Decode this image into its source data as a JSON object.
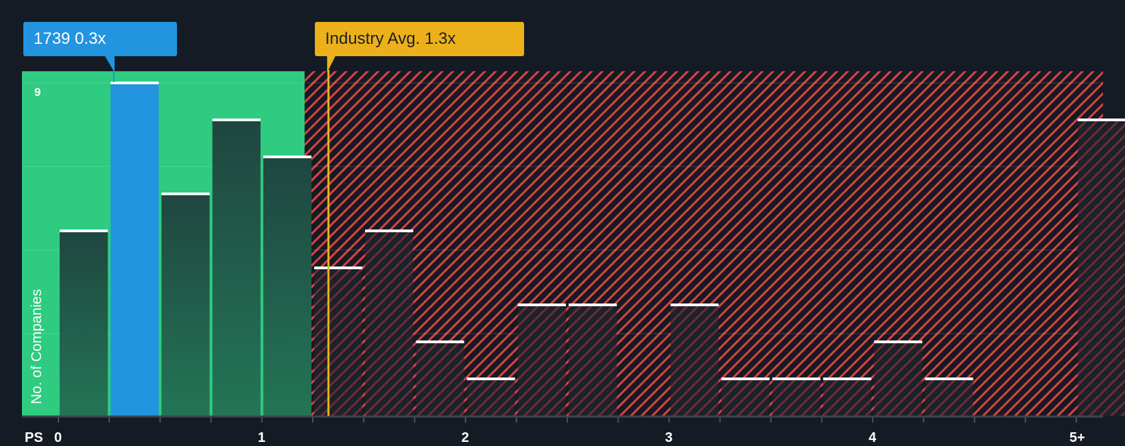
{
  "chart_data": {
    "type": "bar",
    "title": "",
    "xlabel": "PS",
    "ylabel": "No. of Companies",
    "x_tick_labels": [
      "0",
      "1",
      "2",
      "3",
      "4",
      "5+"
    ],
    "y_tick_labels": [
      "9"
    ],
    "ylim": [
      0,
      9
    ],
    "bin_width": 0.25,
    "categories": [
      "0-0.25",
      "0.25-0.5",
      "0.5-0.75",
      "0.75-1",
      "1-1.25",
      "1.25-1.5",
      "1.5-1.75",
      "1.75-2",
      "2-2.25",
      "2.25-2.5",
      "2.5-2.75",
      "2.75-3",
      "3-3.25",
      "3.25-3.5",
      "3.5-3.75",
      "3.75-4",
      "4-4.25",
      "4.25-4.5",
      "4.5-4.75",
      "4.75-5",
      "5+"
    ],
    "values": [
      5,
      9,
      6,
      8,
      7,
      4,
      5,
      2,
      1,
      3,
      3,
      0,
      3,
      1,
      1,
      1,
      2,
      1,
      0,
      0,
      8
    ],
    "highlight_bin_index": 1,
    "company": {
      "label": "1739 0.3x",
      "value": 0.3
    },
    "industry_avg": {
      "label": "Industry Avg. 1.3x",
      "value": 1.3
    },
    "fair_region_end": 1.21,
    "grid": true,
    "legend": "none"
  },
  "colors": {
    "background": "#151b24",
    "good_zone": "#2ecb80",
    "company_bar": "#2394df",
    "bar_in_good": "#1f4a3f",
    "bar_in_bad": "#1c212b",
    "hatch": "#e0423f",
    "industry": "#ecb11a",
    "bar_cap": "#ffffff"
  },
  "labels": {
    "company_tooltip": "1739 0.3x",
    "industry_tooltip": "Industry Avg. 1.3x",
    "y_axis": "No. of Companies",
    "y_max": "9",
    "x_axis": "PS"
  }
}
